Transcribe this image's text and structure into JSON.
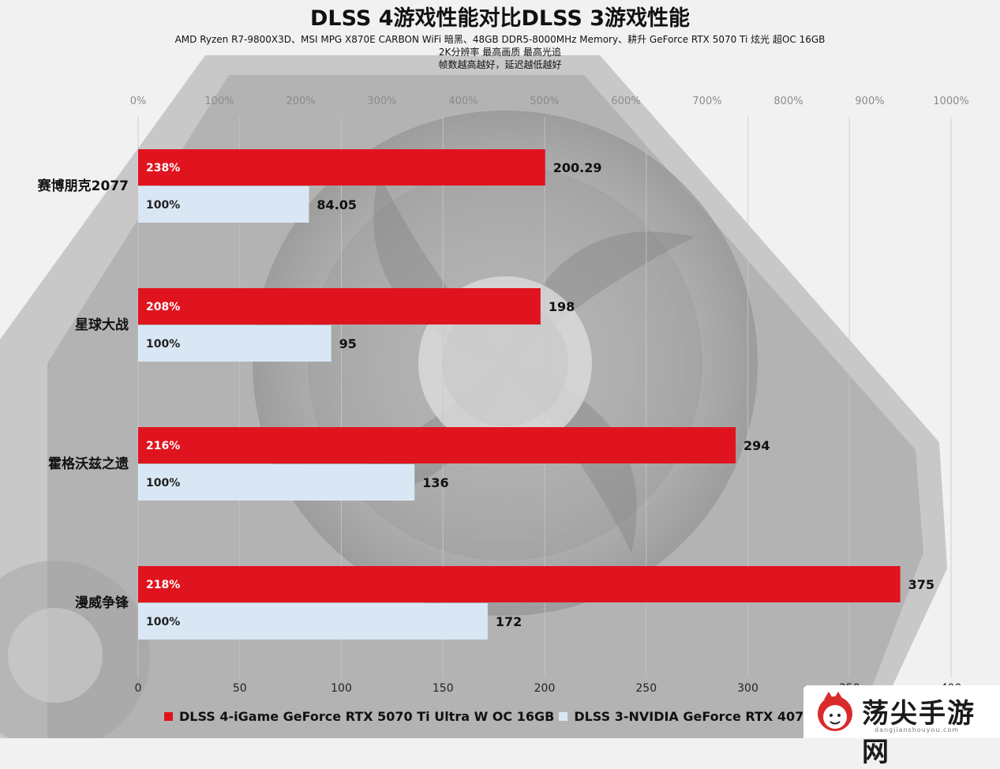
{
  "title": "DLSS 4游戏性能对比DLSS 3游戏性能",
  "subtitles": [
    "AMD Ryzen R7-9800X3D、MSI MPG X870E CARBON WiFi 暗黑、48GB DDR5-8000MHz Memory、耕升 GeForce RTX 5070 Ti 炫光 超OC 16GB",
    "2K分辨率 最高画质 最高光追",
    "帧数越高越好，延迟越低越好"
  ],
  "colors": {
    "dlss4": "#e0141f",
    "dlss3": "#d9e7f5"
  },
  "chart_data": {
    "type": "bar",
    "orientation": "horizontal",
    "categories": [
      "赛博朋克2077",
      "星球大战",
      "霍格沃兹之遗",
      "漫威争锋"
    ],
    "series": [
      {
        "name": "DLSS 4-iGame GeForce RTX 5070 Ti Ultra W OC 16GB",
        "values": [
          200.29,
          198,
          294,
          375
        ],
        "percent_labels": [
          "238%",
          "208%",
          "216%",
          "218%"
        ],
        "value_labels": [
          "200.29",
          "198",
          "294",
          "375"
        ]
      },
      {
        "name": "DLSS 3-NVIDIA GeForce RTX 4070 Ti 12GB",
        "values": [
          84.05,
          95,
          136,
          172
        ],
        "percent_labels": [
          "100%",
          "100%",
          "100%",
          "100%"
        ],
        "value_labels": [
          "84.05",
          "95",
          "136",
          "172"
        ]
      }
    ],
    "x_bottom": {
      "min": 0,
      "max": 400,
      "ticks": [
        "0",
        "50",
        "100",
        "150",
        "200",
        "250",
        "300",
        "350",
        "400"
      ]
    },
    "x_top": {
      "min": 0,
      "max": 1000,
      "ticks": [
        "0%",
        "100%",
        "200%",
        "300%",
        "400%",
        "500%",
        "600%",
        "700%",
        "800%",
        "900%",
        "1000%"
      ]
    },
    "grid": true,
    "legend_position": "bottom"
  },
  "watermark": {
    "text": "荡尖手游网",
    "sub": "dangjianshouyou.com"
  }
}
